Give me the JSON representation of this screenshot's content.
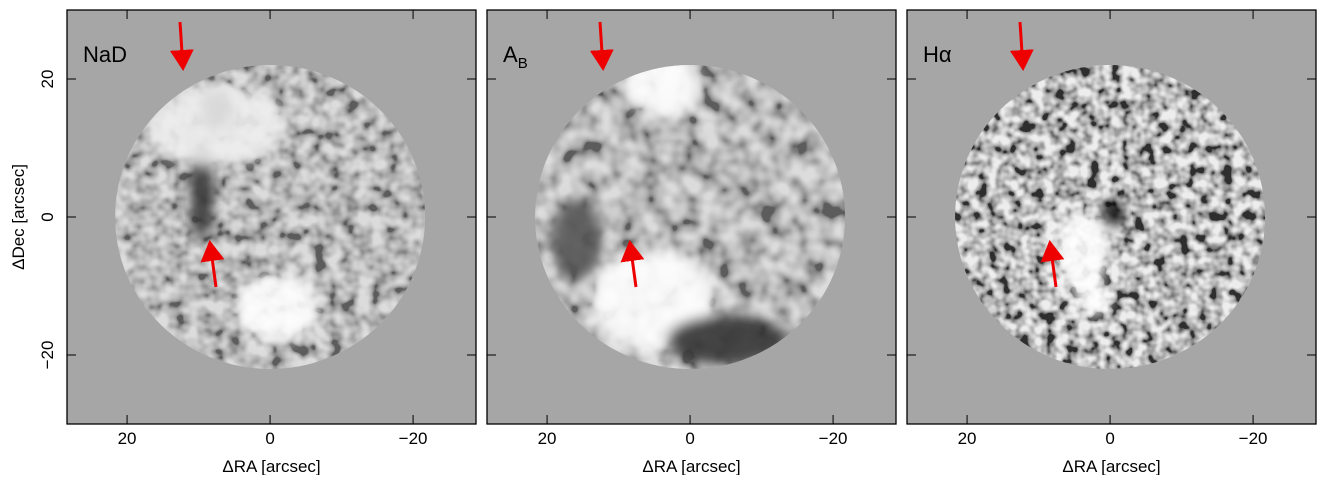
{
  "chart_data": [
    {
      "type": "image",
      "title": "NaD",
      "xlabel": "ΔRA [arcsec]",
      "ylabel": "ΔDec [arcsec]",
      "xlim": [
        28.4,
        -28.8
      ],
      "ylim": [
        -30,
        30
      ],
      "xticks": [
        20,
        0,
        {
          "value": -20,
          "label": "−20"
        }
      ],
      "yticks": [
        {
          "value": -20,
          "label": "−20"
        },
        0,
        20
      ],
      "show_ytick_labels": true
    },
    {
      "type": "image",
      "title": "A",
      "title_sub": "B",
      "xlabel": "ΔRA [arcsec]",
      "xlim": [
        28.4,
        -28.8
      ],
      "ylim": [
        -30,
        30
      ],
      "xticks": [
        20,
        0,
        {
          "value": -20,
          "label": "−20"
        }
      ],
      "yticks": [
        {
          "value": -20,
          "label": "−20"
        },
        0,
        20
      ],
      "show_ytick_labels": false
    },
    {
      "type": "image",
      "title": "Hα",
      "xlabel": "ΔRA [arcsec]",
      "xlim": [
        28.4,
        -28.8
      ],
      "ylim": [
        -30,
        30
      ],
      "xticks": [
        20,
        0,
        {
          "value": -20,
          "label": "−20"
        }
      ],
      "yticks": [
        {
          "value": -20,
          "label": "−20"
        },
        0,
        20
      ],
      "show_ytick_labels": false
    }
  ]
}
